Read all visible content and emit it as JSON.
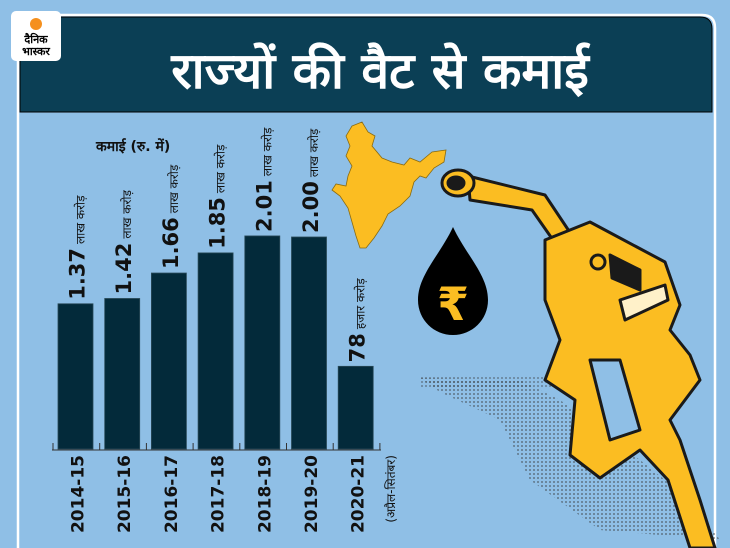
{
  "brand": {
    "logo_line1": "दैनिक",
    "logo_line2": "भास्कर"
  },
  "colors": {
    "background": "#8fbfe6",
    "header": "#0b3f55",
    "bar": "#032a3a",
    "accent": "#fbbd22"
  },
  "chart_data": {
    "type": "bar",
    "title": "राज्यों की वैट से कमाई",
    "ylabel": "कमाई (रु. में)",
    "xlabel": "",
    "categories": [
      "2014-15",
      "2015-16",
      "2016-17",
      "2017-18",
      "2018-19",
      "2019-20",
      "2020-21"
    ],
    "category_note": "(अप्रैल-सितंबर)",
    "values_lakh_crore": [
      1.37,
      1.42,
      1.66,
      1.85,
      2.01,
      2.0,
      0.78
    ],
    "data_labels": [
      {
        "value": "1.37",
        "unit": "लाख करोड़"
      },
      {
        "value": "1.42",
        "unit": "लाख करोड़"
      },
      {
        "value": "1.66",
        "unit": "लाख करोड़"
      },
      {
        "value": "1.85",
        "unit": "लाख करोड़"
      },
      {
        "value": "2.01",
        "unit": "लाख करोड़"
      },
      {
        "value": "2.00",
        "unit": "लाख करोड़"
      },
      {
        "value": "78",
        "unit": "हजार करोड़"
      }
    ],
    "ylim": [
      0,
      2.2
    ],
    "grid": false
  },
  "icons": {
    "rupee": "₹"
  }
}
